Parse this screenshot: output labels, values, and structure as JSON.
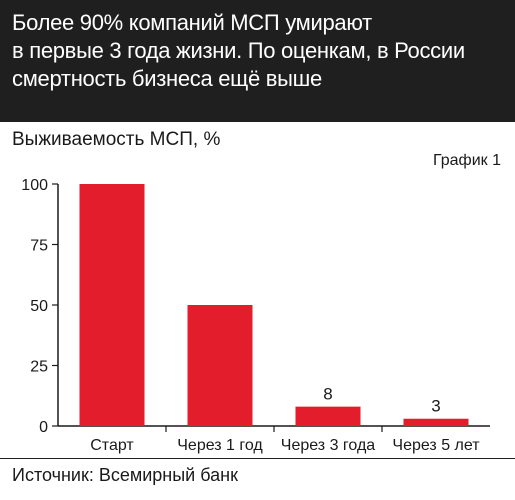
{
  "header": {
    "lines": [
      "Более 90% компаний МСП умирают",
      "в первые 3 года жизни. По оценкам, в России",
      "смертность бизнеса ещё выше"
    ]
  },
  "subtitle": "Выживаемость МСП, %",
  "chart_number": "График 1",
  "source": "Источник: Всемирный банк",
  "colors": {
    "bar": "#e31d2b",
    "header_bg": "#1f1f1f",
    "axis": "#1a1a1a"
  },
  "chart_data": {
    "type": "bar",
    "categories": [
      "Старт",
      "Через 1 год",
      "Через 3 года",
      "Через 5 лет"
    ],
    "values": [
      100,
      50,
      8,
      3
    ],
    "data_labels": [
      "",
      "",
      "8",
      "3"
    ],
    "yticks": [
      "0",
      "25",
      "50",
      "75",
      "100"
    ],
    "ylim": [
      0,
      100
    ],
    "ylabel": "Выживаемость МСП, %",
    "grid": false,
    "legend": "none"
  }
}
